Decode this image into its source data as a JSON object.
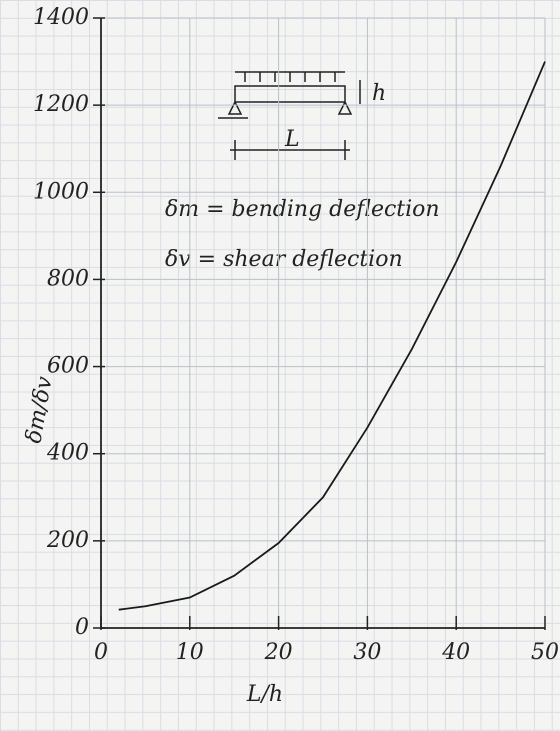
{
  "chart_data": {
    "type": "line",
    "x_label": "L/h",
    "y_label": "δm/δv",
    "annotations": [
      "δm = bending deflection",
      "δv = shear deflection"
    ],
    "diagram_labels": [
      "h",
      "L"
    ],
    "x": [
      2,
      5,
      10,
      15,
      20,
      25,
      30,
      35,
      40,
      45,
      50
    ],
    "values": [
      42,
      50,
      70,
      120,
      195,
      300,
      460,
      640,
      840,
      1060,
      1300
    ],
    "color": "#1a1a1a",
    "xlim": [
      0,
      50
    ],
    "xticks": [
      0,
      10,
      20,
      30,
      40,
      50
    ],
    "ylim": [
      0,
      1400
    ],
    "yticks": [
      0,
      200,
      400,
      600,
      800,
      1000,
      1200,
      1400
    ],
    "grid": true
  }
}
